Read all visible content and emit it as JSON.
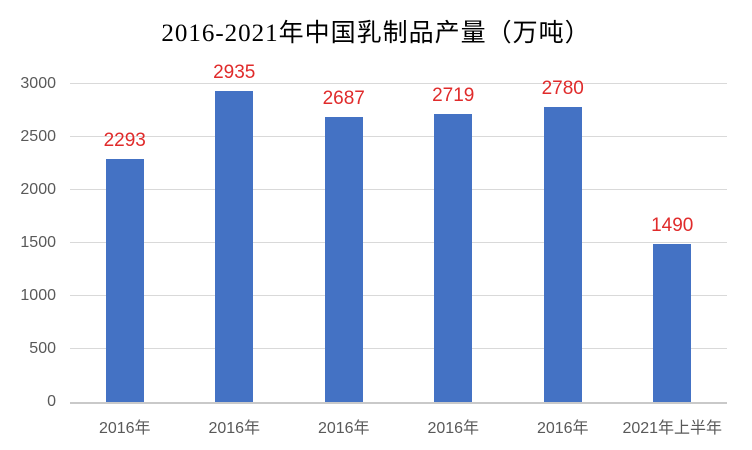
{
  "chart_data": {
    "type": "bar",
    "title": "2016-2021年中国乳制品产量（万吨）",
    "categories": [
      "2016年",
      "2016年",
      "2016年",
      "2016年",
      "2016年",
      "2021年上半年"
    ],
    "values": [
      2293,
      2935,
      2687,
      2719,
      2780,
      1490
    ],
    "data_labels": [
      "2293",
      "2935",
      "2687",
      "2719",
      "2780",
      "1490"
    ],
    "xlabel": "",
    "ylabel": "",
    "ylim": [
      0,
      3000
    ],
    "yticks": [
      0,
      500,
      1000,
      1500,
      2000,
      2500,
      3000
    ],
    "grid": "horizontal",
    "legend": "none",
    "colors": {
      "bar": "#4472c4",
      "data_label": "#e02b2b",
      "axis_text": "#595959",
      "gridline": "#d9d9d9",
      "axis_line": "#c9c9c9",
      "title_text": "#000000",
      "background": "#ffffff"
    }
  }
}
